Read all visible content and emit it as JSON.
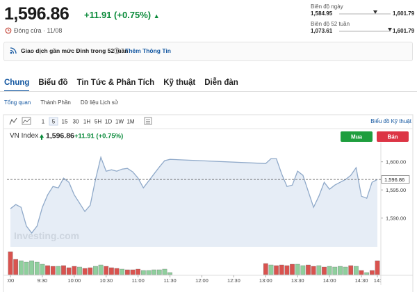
{
  "header": {
    "price": "1,596.86",
    "change": "+11.91 (+0.75%)",
    "status": "Đóng cửa · 11/08",
    "current": 1596.86,
    "day_range": {
      "label": "Biên độ ngày",
      "low": {
        "value": 1584.95,
        "label": "1,584.95"
      },
      "high": {
        "value": 1601.79,
        "label": "1,601.79"
      }
    },
    "week52_range": {
      "label": "Biên độ 52 tuần",
      "low": {
        "value": 1073.61,
        "label": "1,073.61"
      },
      "high": {
        "value": 1601.79,
        "label": "1,601.79"
      }
    }
  },
  "banner": {
    "text": "Giao dịch gần mức Đỉnh trong 52 tuần",
    "link": "Thêm Thông Tin"
  },
  "tabs": [
    "Chung",
    "Biểu đồ",
    "Tin Tức & Phân Tích",
    "Kỹ thuật",
    "Diễn đàn"
  ],
  "subtabs": [
    "Tổng quan",
    "Thành Phần",
    "Dữ liệu Lịch sử"
  ],
  "toolbar": {
    "intervals": [
      "1",
      "5",
      "15",
      "30",
      "1H",
      "5H",
      "1D",
      "1W",
      "1M"
    ],
    "link": "Biểu đồ Kỹ thuật"
  },
  "chart_data": {
    "type": "line",
    "title": "VN Index",
    "price": "1,596.86",
    "change": "+11.91 (+0.75%)",
    "buttons": [
      "Mua",
      "Bán"
    ],
    "watermark": "Investing.com",
    "color": "#8fa9c9",
    "fill": "#e6edf6",
    "x": [
      "9:00",
      "9:05",
      "9:10",
      "9:15",
      "9:20",
      "9:25",
      "9:30",
      "9:35",
      "9:40",
      "9:45",
      "9:50",
      "9:55",
      "10:00",
      "10:05",
      "10:10",
      "10:15",
      "10:20",
      "10:25",
      "10:30",
      "10:35",
      "10:40",
      "10:45",
      "10:50",
      "10:55",
      "11:00",
      "11:05",
      "11:10",
      "11:15",
      "11:20",
      "11:25",
      "11:30",
      "13:00",
      "13:05",
      "13:10",
      "13:15",
      "13:20",
      "13:25",
      "13:30",
      "13:35",
      "13:40",
      "13:45",
      "13:50",
      "13:55",
      "14:00",
      "14:05",
      "14:10",
      "14:15",
      "14:20",
      "14:25",
      "14:30",
      "14:35",
      "14:40",
      "14:45"
    ],
    "values": [
      1591.67,
      1592.41,
      1591.91,
      1588.58,
      1587.35,
      1588.58,
      1591.91,
      1594.14,
      1595.62,
      1595.37,
      1597.1,
      1596.36,
      1594.14,
      1592.65,
      1591.17,
      1592.28,
      1596.85,
      1600.8,
      1598.33,
      1598.58,
      1598.33,
      1598.7,
      1598.83,
      1598.21,
      1597.1,
      1595.37,
      1596.6,
      1597.84,
      1599.07,
      1600.19,
      1600.43,
      1599.69,
      1600.56,
      1600.56,
      1597.84,
      1595.62,
      1595.86,
      1598.33,
      1597.59,
      1594.75,
      1591.91,
      1593.89,
      1596.36,
      1595.12,
      1595.86,
      1596.36,
      1596.85,
      1597.59,
      1598.95,
      1593.89,
      1593.52,
      1596.36,
      1596.85
    ],
    "volume": {
      "values": [
        33,
        22,
        20,
        18,
        20,
        18,
        15,
        13,
        12,
        12,
        13,
        10,
        12,
        11,
        9,
        10,
        12,
        14,
        12,
        10,
        9,
        8,
        7,
        7,
        8,
        6,
        6,
        7,
        7,
        8,
        3,
        16,
        14,
        13,
        14,
        13,
        15,
        15,
        13,
        14,
        12,
        13,
        11,
        12,
        11,
        12,
        11,
        13,
        12,
        6,
        3,
        6,
        20
      ],
      "direction": [
        "down",
        "down",
        "up",
        "up",
        "up",
        "up",
        "up",
        "down",
        "down",
        "up",
        "down",
        "down",
        "down",
        "up",
        "down",
        "down",
        "up",
        "up",
        "down",
        "down",
        "down",
        "up",
        "down",
        "down",
        "down",
        "up",
        "up",
        "up",
        "up",
        "up",
        "up",
        "down",
        "up",
        "down",
        "down",
        "down",
        "down",
        "up",
        "up",
        "down",
        "down",
        "up",
        "down",
        "up",
        "up",
        "up",
        "up",
        "down",
        "up",
        "down",
        "up",
        "down",
        "down"
      ],
      "up_color": "#8fcf9d",
      "down_color": "#d9534f",
      "ylim": [
        0,
        35
      ]
    },
    "last": {
      "value": 1596.86,
      "label": "1,596.86"
    },
    "xlim": [
      "9:00",
      "14:45"
    ],
    "ylim": [
      1584.9,
      1602.8
    ],
    "yticks": [
      {
        "value": 1590,
        "label": "1,590.00"
      },
      {
        "value": 1595,
        "label": "1,595.00"
      },
      {
        "value": 1600,
        "label": "1,600.00"
      }
    ],
    "xticks": [
      {
        "value": "9:00",
        "label": ":00"
      },
      "9:30",
      "10:00",
      "10:30",
      "11:00",
      "11:30",
      "12:00",
      "12:30",
      "13:00",
      "13:30",
      "14:00",
      "14:30",
      {
        "value": "14:45",
        "label": "14:"
      }
    ]
  }
}
